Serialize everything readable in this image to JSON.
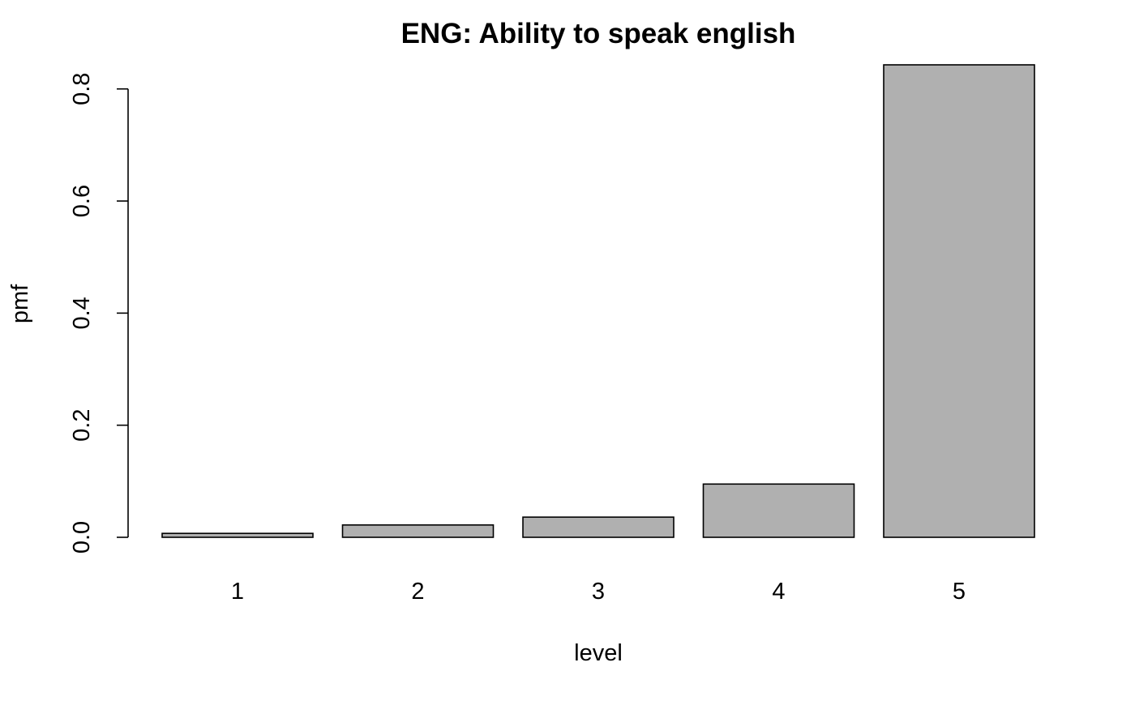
{
  "chart_data": {
    "type": "bar",
    "title": "ENG: Ability to speak english",
    "xlabel": "level",
    "ylabel": "pmf",
    "categories": [
      "1",
      "2",
      "3",
      "4",
      "5"
    ],
    "values": [
      0.007,
      0.022,
      0.036,
      0.095,
      0.843
    ],
    "ylim": [
      0,
      0.843
    ],
    "y_ticks": [
      0.0,
      0.2,
      0.4,
      0.6,
      0.8
    ],
    "y_tick_labels": [
      "0.0",
      "0.2",
      "0.4",
      "0.6",
      "0.8"
    ],
    "bar_color": "#b0b0b0",
    "bar_border_color": "#000000",
    "grid": false,
    "legend": "none"
  }
}
